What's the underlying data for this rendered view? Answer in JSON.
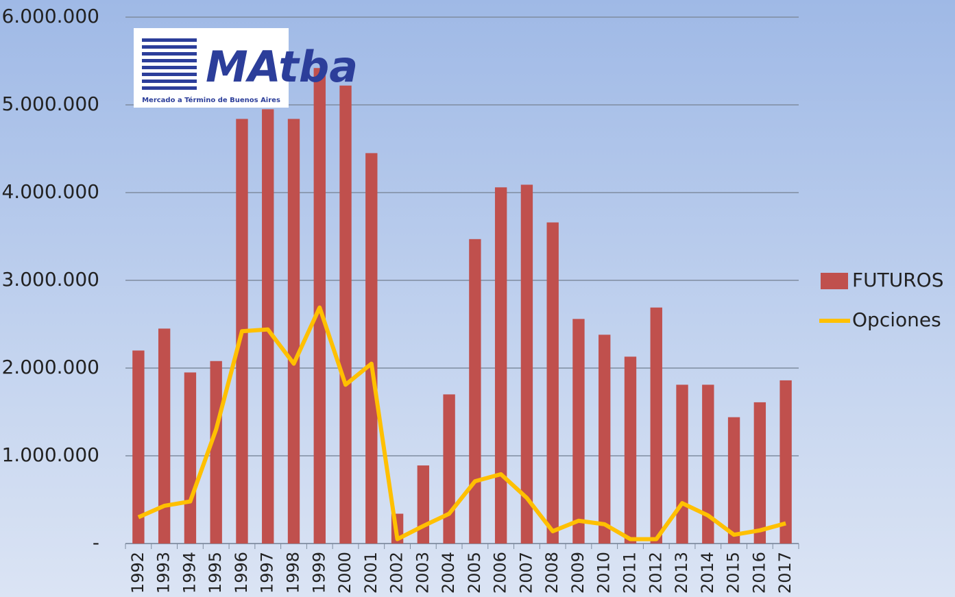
{
  "chart_data": {
    "type": "bar_line",
    "logo": {
      "title": "MAtba",
      "subtitle": "Mercado a Término de Buenos Aires"
    },
    "categories": [
      "1992",
      "1993",
      "1994",
      "1995",
      "1996",
      "1997",
      "1998",
      "1999",
      "2000",
      "2001",
      "2002",
      "2003",
      "2004",
      "2005",
      "2006",
      "2007",
      "2008",
      "2009",
      "2010",
      "2011",
      "2012",
      "2013",
      "2014",
      "2015",
      "2016",
      "2017"
    ],
    "series": [
      {
        "name": "FUTUROS",
        "type": "bar",
        "color": "#c0504d",
        "values": [
          2200000,
          2450000,
          1950000,
          2080000,
          4840000,
          4950000,
          4840000,
          5420000,
          5220000,
          4450000,
          340000,
          890000,
          1700000,
          3470000,
          4060000,
          4090000,
          3660000,
          2560000,
          2380000,
          2130000,
          2690000,
          1810000,
          1810000,
          1440000,
          1610000,
          1860000
        ]
      },
      {
        "name": "Opciones",
        "type": "line",
        "color": "#ffc000",
        "values": [
          300000,
          430000,
          480000,
          1300000,
          2420000,
          2440000,
          2050000,
          2690000,
          1810000,
          2050000,
          50000,
          200000,
          340000,
          710000,
          790000,
          520000,
          140000,
          260000,
          220000,
          50000,
          50000,
          460000,
          320000,
          100000,
          150000,
          230000
        ]
      }
    ],
    "ylim": [
      0,
      6000000
    ],
    "yticks": [
      {
        "value": 0,
        "label": "-"
      },
      {
        "value": 1000000,
        "label": "1.000.000"
      },
      {
        "value": 2000000,
        "label": "2.000.000"
      },
      {
        "value": 3000000,
        "label": "3.000.000"
      },
      {
        "value": 4000000,
        "label": "4.000.000"
      },
      {
        "value": 5000000,
        "label": "5.000.000"
      },
      {
        "value": 6000000,
        "label": "6.000.000"
      }
    ],
    "grid": true,
    "legend": "right"
  }
}
